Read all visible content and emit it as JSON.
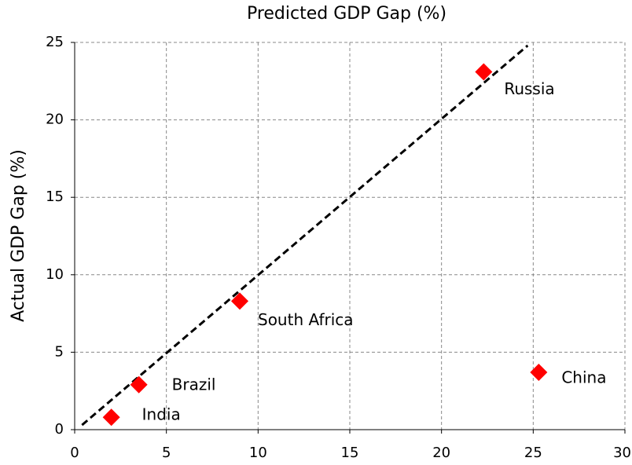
{
  "chart_data": {
    "type": "scatter",
    "title": "Predicted GDP Gap (%)",
    "y_label": "Actual GDP Gap (%)",
    "labels": [
      "India",
      "Brazil",
      "South Africa",
      "Russia",
      "China"
    ],
    "x": [
      2,
      3.5,
      9,
      22.3,
      25.3
    ],
    "values": [
      0.8,
      2.9,
      8.3,
      23.1,
      3.7
    ],
    "color": "#ff0000",
    "fit_line": {
      "x": [
        0.4,
        24.7
      ],
      "y": [
        0.3,
        24.8
      ],
      "color": "#000000"
    },
    "xlim": [
      0,
      30
    ],
    "xticks": [
      0,
      5,
      10,
      15,
      20,
      25,
      30
    ],
    "ylim": [
      0,
      25
    ],
    "yticks": [
      0,
      5,
      10,
      15,
      20,
      25
    ],
    "grid": true
  }
}
